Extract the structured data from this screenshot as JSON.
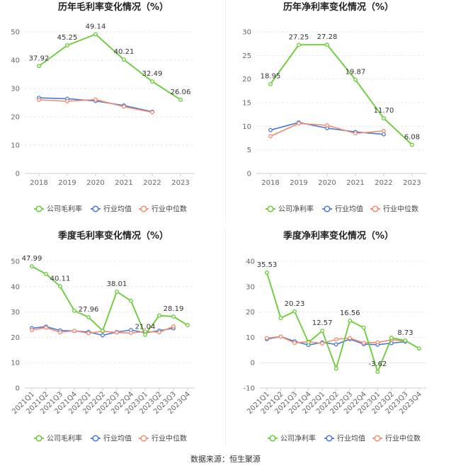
{
  "colors": {
    "company": "#66cc33",
    "industry_avg": "#4a78d8",
    "industry_median": "#f28c6f",
    "axis_text": "#666666",
    "grid": "#e6e6e6"
  },
  "source": "数据来源：恒生聚源",
  "chart_data": [
    {
      "type": "line",
      "title": "历年毛利率变化情况（%）",
      "categories": [
        "2018",
        "2019",
        "2020",
        "2021",
        "2022",
        "2023"
      ],
      "ylim": [
        0,
        50
      ],
      "yticks": [
        0,
        10,
        20,
        30,
        40,
        50
      ],
      "legend": [
        "公司毛利率",
        "行业均值",
        "行业中位数"
      ],
      "series": [
        {
          "name": "公司毛利率",
          "values": [
            37.92,
            45.25,
            49.14,
            40.21,
            32.49,
            26.06
          ],
          "labels": [
            "37.92",
            "45.25",
            "49.14",
            "40.21",
            "32.49",
            "26.06"
          ]
        },
        {
          "name": "行业均值",
          "values": [
            26.7,
            26.4,
            25.6,
            24.0,
            21.8,
            null
          ]
        },
        {
          "name": "行业中位数",
          "values": [
            26.0,
            25.5,
            26.1,
            23.6,
            21.6,
            null
          ]
        }
      ]
    },
    {
      "type": "line",
      "title": "历年净利率变化情况（%）",
      "categories": [
        "2018",
        "2019",
        "2020",
        "2021",
        "2022",
        "2023"
      ],
      "ylim": [
        0,
        30
      ],
      "yticks": [
        0,
        5,
        10,
        15,
        20,
        25,
        30
      ],
      "legend": [
        "公司净利率",
        "行业均值",
        "行业中位数"
      ],
      "series": [
        {
          "name": "公司净利率",
          "values": [
            18.95,
            27.25,
            27.28,
            19.87,
            11.7,
            6.08
          ],
          "labels": [
            "18.95",
            "27.25",
            "27.28",
            "19.87",
            "11.70",
            "6.08"
          ]
        },
        {
          "name": "行业均值",
          "values": [
            9.2,
            10.8,
            9.6,
            8.8,
            8.3,
            null
          ]
        },
        {
          "name": "行业中位数",
          "values": [
            7.9,
            10.6,
            10.2,
            8.5,
            9.0,
            null
          ]
        }
      ]
    },
    {
      "type": "line",
      "title": "季度毛利率变化情况（%）",
      "categories": [
        "2021Q1",
        "2021Q2",
        "2021Q3",
        "2021Q4",
        "2022Q1",
        "2022Q2",
        "2022Q3",
        "2022Q4",
        "2023Q1",
        "2023Q2",
        "2023Q3",
        "2023Q4"
      ],
      "ylim": [
        0,
        50
      ],
      "yticks": [
        0,
        10,
        20,
        30,
        40,
        50
      ],
      "legend": [
        "公司毛利率",
        "行业均值",
        "行业中位数"
      ],
      "series": [
        {
          "name": "公司毛利率",
          "values": [
            47.99,
            45.0,
            40.11,
            30.5,
            27.96,
            22.6,
            38.01,
            34.4,
            21.04,
            28.6,
            28.19,
            24.8
          ],
          "labels": [
            "47.99",
            "",
            "40.11",
            "",
            "27.96",
            "",
            "38.01",
            "",
            "21.04",
            "",
            "28.19",
            ""
          ]
        },
        {
          "name": "行业均值",
          "values": [
            23.6,
            24.2,
            22.7,
            22.5,
            22.1,
            20.8,
            22.1,
            22.9,
            21.8,
            22.6,
            23.6,
            null
          ]
        },
        {
          "name": "行业中位数",
          "values": [
            22.9,
            23.8,
            22.0,
            22.6,
            21.6,
            22.4,
            21.9,
            21.7,
            22.3,
            22.0,
            24.3,
            null
          ]
        }
      ]
    },
    {
      "type": "line",
      "title": "季度净利率变化情况（%）",
      "categories": [
        "2021Q1",
        "2021Q2",
        "2021Q3",
        "2021Q4",
        "2022Q1",
        "2022Q2",
        "2022Q3",
        "2022Q4",
        "2023Q1",
        "2023Q2",
        "2023Q3",
        "2023Q4"
      ],
      "ylim": [
        -10,
        40
      ],
      "yticks": [
        -10,
        0,
        10,
        20,
        30,
        40
      ],
      "legend": [
        "公司净利率",
        "行业均值",
        "行业中位数"
      ],
      "series": [
        {
          "name": "公司净利率",
          "values": [
            35.53,
            17.6,
            20.23,
            8.0,
            12.57,
            -2.3,
            16.56,
            13.8,
            -3.62,
            9.8,
            8.73,
            5.6
          ],
          "labels": [
            "35.53",
            "",
            "20.23",
            "",
            "12.57",
            "",
            "16.56",
            "",
            "-3.62",
            "",
            "8.73",
            ""
          ]
        },
        {
          "name": "行业均值",
          "values": [
            9.3,
            10.3,
            8.4,
            7.0,
            8.0,
            7.2,
            9.3,
            7.3,
            7.1,
            7.7,
            8.3,
            null
          ]
        },
        {
          "name": "行业中位数",
          "values": [
            9.7,
            10.3,
            7.8,
            8.3,
            7.6,
            9.2,
            9.7,
            7.8,
            8.0,
            9.0,
            8.6,
            null
          ]
        }
      ]
    }
  ]
}
